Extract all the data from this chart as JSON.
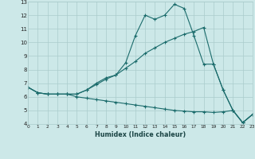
{
  "xlabel": "Humidex (Indice chaleur)",
  "bg_color": "#cce8e8",
  "grid_color": "#aacccc",
  "line_color": "#1a6b6b",
  "xlim": [
    0,
    23
  ],
  "ylim": [
    4,
    13
  ],
  "xtick_vals": [
    0,
    1,
    2,
    3,
    4,
    5,
    6,
    7,
    8,
    9,
    10,
    11,
    12,
    13,
    14,
    15,
    16,
    17,
    18,
    19,
    20,
    21,
    22,
    23
  ],
  "xtick_labels": [
    "0",
    "1",
    "2",
    "3",
    "4",
    "5",
    "6",
    "7",
    "8",
    "9",
    "10",
    "11",
    "12",
    "13",
    "14",
    "15",
    "16",
    "17",
    "18",
    "19",
    "20",
    "21",
    "22",
    "23"
  ],
  "ytick_vals": [
    4,
    5,
    6,
    7,
    8,
    9,
    10,
    11,
    12,
    13
  ],
  "ytick_labels": [
    "4",
    "5",
    "6",
    "7",
    "8",
    "9",
    "10",
    "11",
    "12",
    "13"
  ],
  "line1_x": [
    0,
    1,
    2,
    3,
    4,
    5,
    6,
    7,
    8,
    9,
    10,
    11,
    12,
    13,
    14,
    15,
    16,
    17,
    18,
    19,
    20,
    21,
    22,
    23
  ],
  "line1_y": [
    6.7,
    6.3,
    6.2,
    6.2,
    6.2,
    6.2,
    6.5,
    7.0,
    7.4,
    7.6,
    8.5,
    10.5,
    12.0,
    11.7,
    12.0,
    12.8,
    12.5,
    10.5,
    8.4,
    8.4,
    6.5,
    5.0,
    4.1,
    4.7
  ],
  "line2_x": [
    0,
    1,
    2,
    3,
    4,
    5,
    6,
    7,
    8,
    9,
    10,
    11,
    12,
    13,
    14,
    15,
    16,
    17,
    18,
    19,
    20,
    21,
    22,
    23
  ],
  "line2_y": [
    6.7,
    6.3,
    6.2,
    6.2,
    6.2,
    6.2,
    6.5,
    6.9,
    7.3,
    7.6,
    8.1,
    8.6,
    9.2,
    9.6,
    10.0,
    10.3,
    10.6,
    10.8,
    11.1,
    8.4,
    6.5,
    5.0,
    4.1,
    4.7
  ],
  "line3_x": [
    0,
    1,
    2,
    3,
    4,
    5,
    6,
    7,
    8,
    9,
    10,
    11,
    12,
    13,
    14,
    15,
    16,
    17,
    18,
    19,
    20,
    21,
    22,
    23
  ],
  "line3_y": [
    6.7,
    6.3,
    6.2,
    6.2,
    6.2,
    6.0,
    5.9,
    5.8,
    5.7,
    5.6,
    5.5,
    5.4,
    5.3,
    5.2,
    5.1,
    5.0,
    4.95,
    4.9,
    4.9,
    4.85,
    4.9,
    5.0,
    4.1,
    4.7
  ]
}
